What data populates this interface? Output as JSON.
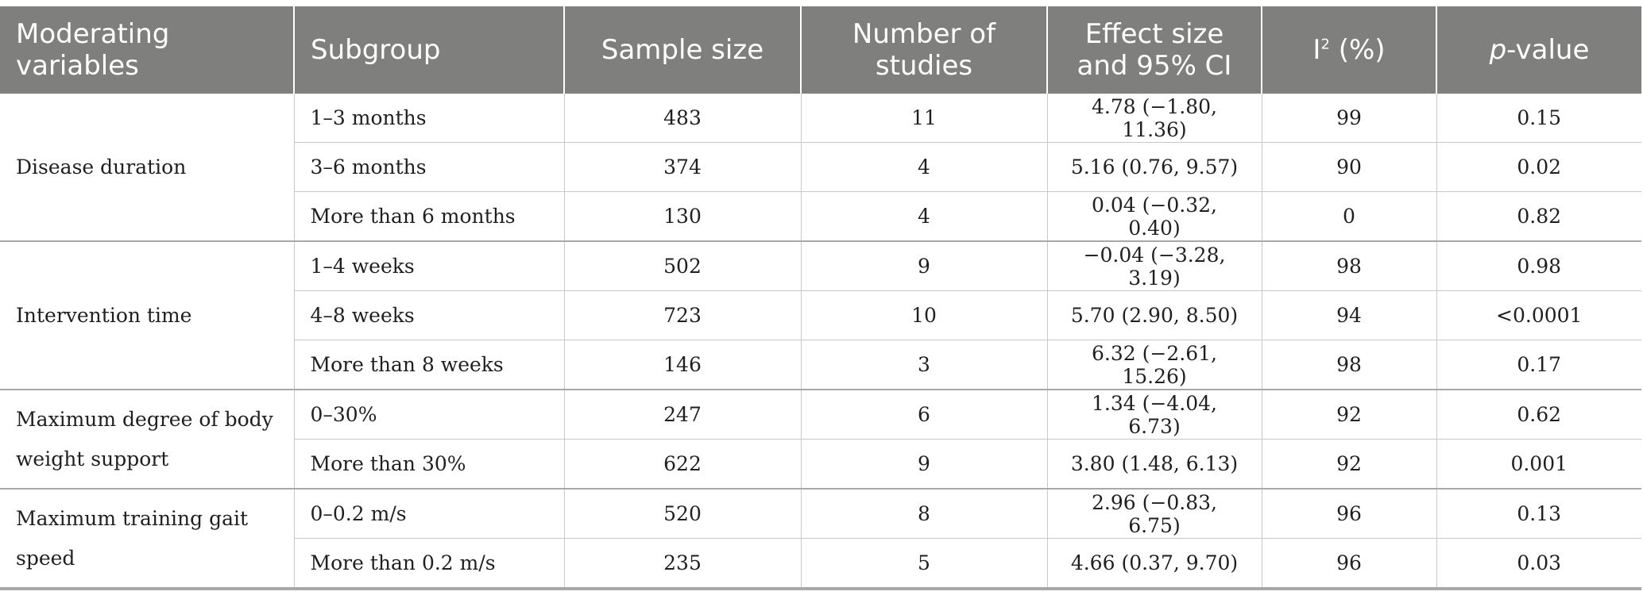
{
  "table": {
    "headers": {
      "moderating": "Moderating variables",
      "subgroup": "Subgroup",
      "sample_size": "Sample size",
      "num_studies": "Number of studies",
      "effect_size": "Effect size and 95% CI",
      "i2_base": "I",
      "i2_sup": "2",
      "i2_suffix": " (%)",
      "p_italic": "p",
      "p_suffix": "-value"
    },
    "groups": [
      {
        "label": "Disease duration",
        "rows": [
          {
            "subgroup": "1–3 months",
            "sample_size": "483",
            "studies": "11",
            "effect": "4.78 (−1.80, 11.36)",
            "i2": "99",
            "p": "0.15"
          },
          {
            "subgroup": "3–6 months",
            "sample_size": "374",
            "studies": "4",
            "effect": "5.16 (0.76, 9.57)",
            "i2": "90",
            "p": "0.02"
          },
          {
            "subgroup": "More than 6 months",
            "sample_size": "130",
            "studies": "4",
            "effect": "0.04 (−0.32, 0.40)",
            "i2": "0",
            "p": "0.82"
          }
        ]
      },
      {
        "label": "Intervention time",
        "rows": [
          {
            "subgroup": "1–4 weeks",
            "sample_size": "502",
            "studies": "9",
            "effect": "−0.04 (−3.28, 3.19)",
            "i2": "98",
            "p": "0.98"
          },
          {
            "subgroup": "4–8 weeks",
            "sample_size": "723",
            "studies": "10",
            "effect": "5.70 (2.90, 8.50)",
            "i2": "94",
            "p": "<0.0001"
          },
          {
            "subgroup": "More than 8 weeks",
            "sample_size": "146",
            "studies": "3",
            "effect": "6.32 (−2.61, 15.26)",
            "i2": "98",
            "p": "0.17"
          }
        ]
      },
      {
        "label": "Maximum degree of body weight support",
        "rows": [
          {
            "subgroup": "0–30%",
            "sample_size": "247",
            "studies": "6",
            "effect": "1.34 (−4.04, 6.73)",
            "i2": "92",
            "p": "0.62"
          },
          {
            "subgroup": "More than 30%",
            "sample_size": "622",
            "studies": "9",
            "effect": "3.80 (1.48, 6.13)",
            "i2": "92",
            "p": "0.001"
          }
        ]
      },
      {
        "label": "Maximum training gait speed",
        "rows": [
          {
            "subgroup": "0–0.2 m/s",
            "sample_size": "520",
            "studies": "8",
            "effect": "2.96 (−0.83, 6.75)",
            "i2": "96",
            "p": "0.13"
          },
          {
            "subgroup": "More than 0.2 m/s",
            "sample_size": "235",
            "studies": "5",
            "effect": "4.66 (0.37, 9.70)",
            "i2": "96",
            "p": "0.03"
          }
        ]
      }
    ]
  }
}
